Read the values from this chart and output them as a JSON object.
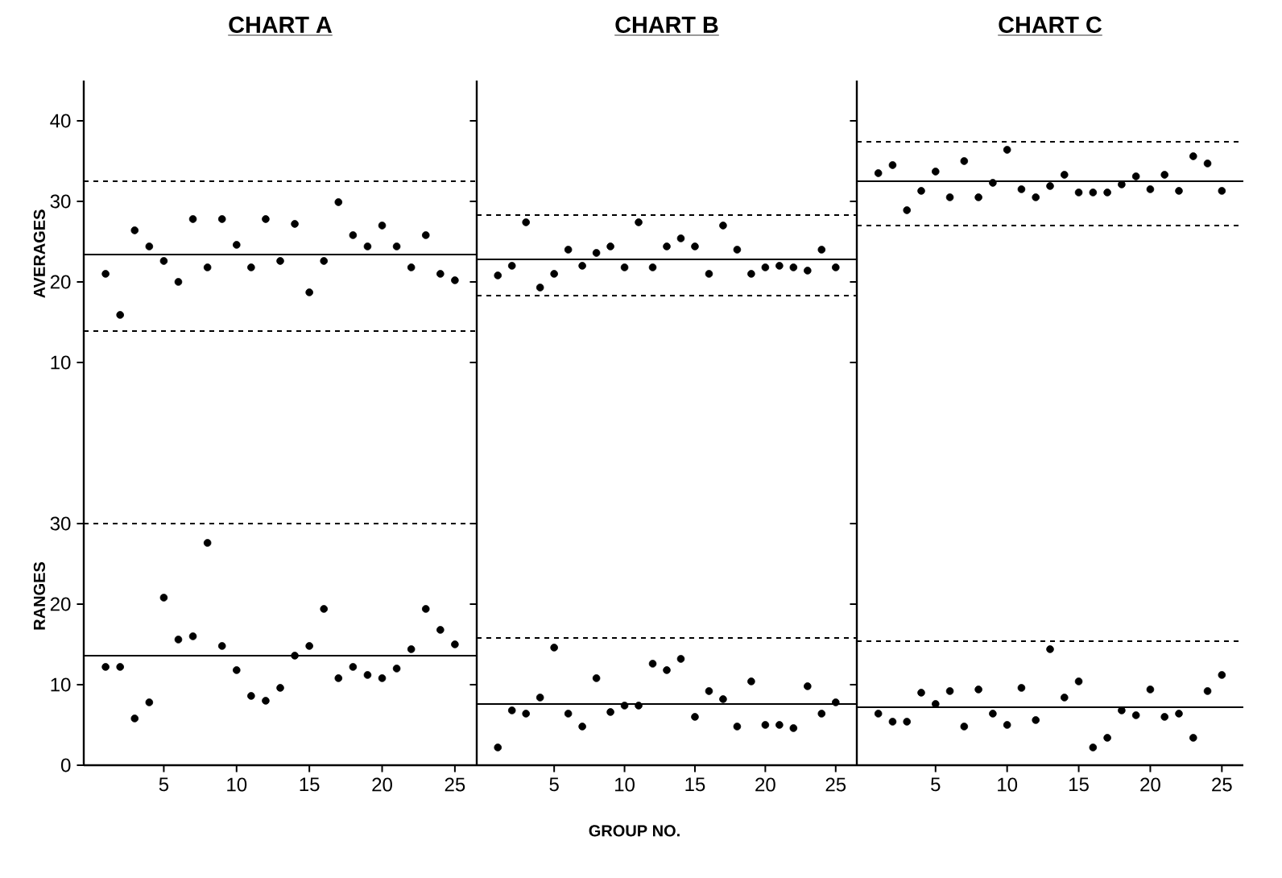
{
  "chart_data": [
    {
      "type": "scatter",
      "title": "CHART A",
      "ylabel": "AVERAGES",
      "x": [
        1,
        2,
        3,
        4,
        5,
        6,
        7,
        8,
        9,
        10,
        11,
        12,
        13,
        14,
        15,
        16,
        17,
        18,
        19,
        20,
        21,
        22,
        23,
        24,
        25
      ],
      "values": [
        21.0,
        15.9,
        26.4,
        24.4,
        22.6,
        20.0,
        27.8,
        21.8,
        27.8,
        24.6,
        21.8,
        27.8,
        22.6,
        27.2,
        18.7,
        22.6,
        29.9,
        25.8,
        24.4,
        27.0,
        24.4,
        21.8,
        25.8,
        21.0,
        20.2
      ],
      "color": "#000000",
      "marker": "circle",
      "xlim": [
        -0.5,
        26.5
      ],
      "ylim": [
        2,
        45
      ],
      "yticks": [
        10,
        20,
        30,
        40
      ],
      "tick_labels": "y",
      "ref_lines": [
        {
          "axis": "y",
          "value": 23.4,
          "line_style": "solid",
          "color": "#000000"
        },
        {
          "axis": "y",
          "value": 32.5,
          "line_style": "dashed",
          "color": "#000000"
        },
        {
          "axis": "y",
          "value": 13.9,
          "line_style": "dashed",
          "color": "#000000"
        }
      ]
    },
    {
      "type": "scatter",
      "title": "CHART B",
      "x": [
        1,
        2,
        3,
        4,
        5,
        6,
        7,
        8,
        9,
        10,
        11,
        12,
        13,
        14,
        15,
        16,
        17,
        18,
        19,
        20,
        21,
        22,
        23,
        24,
        25
      ],
      "values": [
        20.8,
        22.0,
        27.4,
        19.3,
        21.0,
        24.0,
        22.0,
        23.6,
        24.4,
        21.8,
        27.4,
        21.8,
        24.4,
        25.4,
        24.4,
        21.0,
        27.0,
        24.0,
        21.0,
        21.8,
        22.0,
        21.8,
        21.4,
        24.0,
        21.8
      ],
      "color": "#000000",
      "marker": "circle",
      "xlim": [
        -0.5,
        26.5
      ],
      "ylim": [
        2,
        45
      ],
      "yticks": [
        10,
        20,
        30,
        40
      ],
      "tick_labels": false,
      "ref_lines": [
        {
          "axis": "y",
          "value": 22.8,
          "line_style": "solid",
          "color": "#000000"
        },
        {
          "axis": "y",
          "value": 28.3,
          "line_style": "dashed",
          "color": "#000000"
        },
        {
          "axis": "y",
          "value": 18.3,
          "line_style": "dashed",
          "color": "#000000"
        }
      ]
    },
    {
      "type": "scatter",
      "title": "CHART C",
      "x": [
        1,
        2,
        3,
        4,
        5,
        6,
        7,
        8,
        9,
        10,
        11,
        12,
        13,
        14,
        15,
        16,
        17,
        18,
        19,
        20,
        21,
        22,
        23,
        24,
        25
      ],
      "values": [
        33.5,
        34.5,
        28.9,
        31.3,
        33.7,
        30.5,
        35.0,
        30.5,
        32.3,
        36.4,
        31.5,
        30.5,
        31.9,
        33.3,
        31.1,
        31.1,
        31.1,
        32.1,
        33.1,
        31.5,
        33.3,
        31.3,
        35.6,
        34.7,
        31.3
      ],
      "color": "#000000",
      "marker": "circle",
      "xlim": [
        -0.5,
        26.5
      ],
      "ylim": [
        2,
        45
      ],
      "yticks": [
        10,
        20,
        30,
        40
      ],
      "tick_labels": false,
      "ref_lines": [
        {
          "axis": "y",
          "value": 32.5,
          "line_style": "solid",
          "color": "#000000"
        },
        {
          "axis": "y",
          "value": 37.4,
          "line_style": "dashed",
          "color": "#000000"
        },
        {
          "axis": "y",
          "value": 27.0,
          "line_style": "dashed",
          "color": "#000000"
        }
      ]
    },
    {
      "type": "scatter",
      "ylabel": "RANGES",
      "x": [
        1,
        2,
        3,
        4,
        5,
        6,
        7,
        8,
        9,
        10,
        11,
        12,
        13,
        14,
        15,
        16,
        17,
        18,
        19,
        20,
        21,
        22,
        23,
        24,
        25
      ],
      "values": [
        12.2,
        12.2,
        5.8,
        7.8,
        20.8,
        15.6,
        16.0,
        27.6,
        14.8,
        11.8,
        8.6,
        8.0,
        9.6,
        13.6,
        14.8,
        19.4,
        10.8,
        12.2,
        11.2,
        10.8,
        12.0,
        14.4,
        19.4,
        16.8,
        15.0
      ],
      "color": "#000000",
      "marker": "circle",
      "xlim": [
        -0.5,
        26.5
      ],
      "xticks": [
        5,
        10,
        15,
        20,
        25
      ],
      "ylim": [
        0,
        42
      ],
      "yticks": [
        0,
        10,
        20,
        30
      ],
      "ref_lines": [
        {
          "axis": "y",
          "value": 13.6,
          "line_style": "solid",
          "color": "#000000"
        },
        {
          "axis": "y",
          "value": 30,
          "line_style": "dashed",
          "color": "#000000"
        }
      ]
    },
    {
      "type": "scatter",
      "xlabel": "GROUP NO.",
      "x": [
        1,
        2,
        3,
        4,
        5,
        6,
        7,
        8,
        9,
        10,
        11,
        12,
        13,
        14,
        15,
        16,
        17,
        18,
        19,
        20,
        21,
        22,
        23,
        24,
        25
      ],
      "values": [
        2.2,
        6.8,
        6.4,
        8.4,
        14.6,
        6.4,
        4.8,
        10.8,
        6.6,
        7.4,
        7.4,
        12.6,
        11.8,
        13.2,
        6.0,
        9.2,
        8.2,
        4.8,
        10.4,
        5.0,
        5.0,
        4.6,
        9.8,
        6.4,
        7.8
      ],
      "color": "#000000",
      "marker": "circle",
      "xlim": [
        -0.5,
        26.5
      ],
      "xticks": [
        5,
        10,
        15,
        20,
        25
      ],
      "ylim": [
        0,
        42
      ],
      "yticks": [
        0,
        10,
        20,
        30
      ],
      "tick_labels": "x",
      "ref_lines": [
        {
          "axis": "y",
          "value": 7.6,
          "line_style": "solid",
          "color": "#000000"
        },
        {
          "axis": "y",
          "value": 15.8,
          "line_style": "dashed",
          "color": "#000000"
        }
      ]
    },
    {
      "type": "scatter",
      "x": [
        1,
        2,
        3,
        4,
        5,
        6,
        7,
        8,
        9,
        10,
        11,
        12,
        13,
        14,
        15,
        16,
        17,
        18,
        19,
        20,
        21,
        22,
        23,
        24,
        25
      ],
      "values": [
        6.4,
        5.4,
        5.4,
        9.0,
        7.6,
        9.2,
        4.8,
        9.4,
        6.4,
        5.0,
        9.6,
        5.6,
        14.4,
        8.4,
        10.4,
        2.2,
        3.4,
        6.8,
        6.2,
        9.4,
        6.0,
        6.4,
        3.4,
        9.2,
        11.2
      ],
      "color": "#000000",
      "marker": "circle",
      "xlim": [
        -0.5,
        26.5
      ],
      "xticks": [
        5,
        10,
        15,
        20,
        25
      ],
      "ylim": [
        0,
        42
      ],
      "yticks": [
        0,
        10,
        20,
        30
      ],
      "tick_labels": "x",
      "ref_lines": [
        {
          "axis": "y",
          "value": 7.2,
          "line_style": "solid",
          "color": "#000000"
        },
        {
          "axis": "y",
          "value": 15.4,
          "line_style": "dashed",
          "color": "#000000"
        }
      ]
    }
  ]
}
